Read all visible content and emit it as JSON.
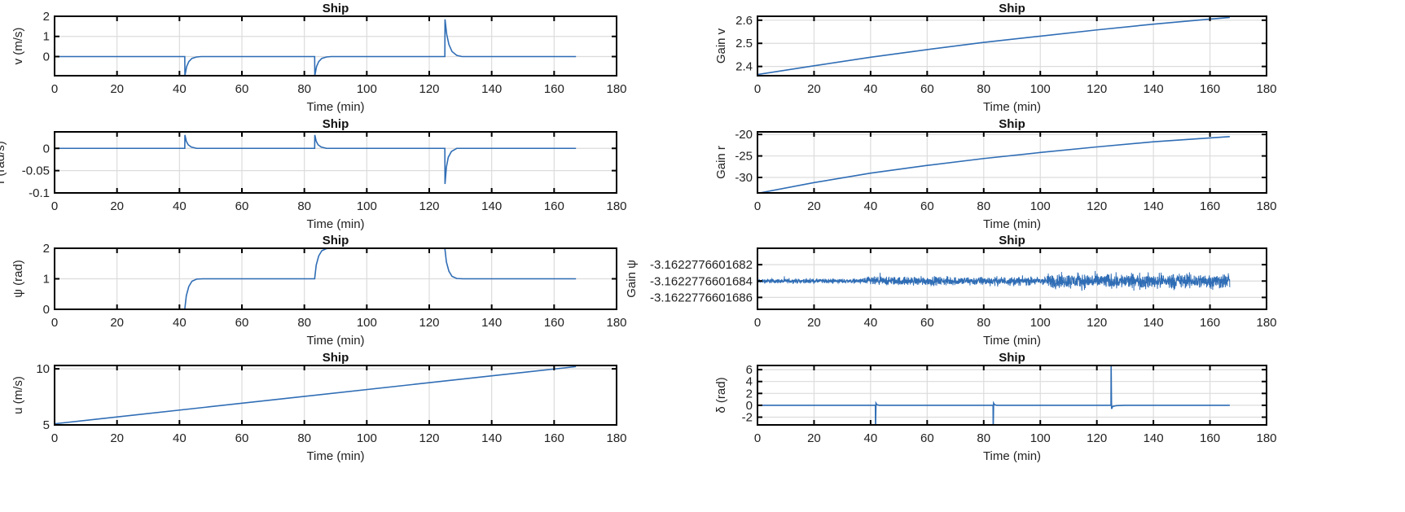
{
  "line_color": "#2f6db5",
  "chart_data": [
    {
      "type": "line",
      "title": "Ship",
      "xlabel": "Time (min)",
      "ylabel": "v (m/s)",
      "xlim": [
        0,
        180
      ],
      "ylim": [
        -0.95,
        2
      ],
      "xticks": [
        0,
        20,
        40,
        60,
        80,
        100,
        120,
        140,
        160,
        180
      ],
      "yticks": [
        0,
        1,
        2
      ],
      "grid": true,
      "x": [
        0,
        41.7,
        41.75,
        42.3,
        43,
        44,
        45.5,
        47,
        83.3,
        83.35,
        83.9,
        84.6,
        85.6,
        87.1,
        88.6,
        125,
        125.05,
        125.6,
        126.3,
        127.3,
        128.8,
        130.5,
        167
      ],
      "y": [
        0,
        0,
        -0.95,
        -0.5,
        -0.25,
        -0.09,
        -0.02,
        0,
        0,
        -0.95,
        -0.5,
        -0.25,
        -0.09,
        -0.02,
        0,
        0,
        1.85,
        1.1,
        0.6,
        0.25,
        0.06,
        0,
        0
      ]
    },
    {
      "type": "line",
      "title": "Ship",
      "xlabel": "Time (min)",
      "ylabel": "r (rad/s)",
      "xlim": [
        0,
        180
      ],
      "ylim": [
        -0.1,
        0.037
      ],
      "xticks": [
        0,
        20,
        40,
        60,
        80,
        100,
        120,
        140,
        160,
        180
      ],
      "yticks": [
        -0.1,
        -0.05,
        0
      ],
      "ytick_labels": [
        "-0.1",
        "-0.05",
        "0"
      ],
      "grid": true,
      "x": [
        0,
        41.7,
        41.75,
        42.2,
        42.8,
        43.8,
        45.5,
        83.3,
        83.35,
        83.8,
        84.4,
        85.4,
        87.1,
        125,
        125.05,
        125.5,
        126.1,
        127.1,
        128.8,
        167
      ],
      "y": [
        0,
        0,
        0.03,
        0.016,
        0.008,
        0.003,
        0,
        0,
        0.03,
        0.016,
        0.008,
        0.003,
        0,
        0,
        -0.08,
        -0.042,
        -0.02,
        -0.007,
        0,
        0
      ]
    },
    {
      "type": "line",
      "title": "Ship",
      "xlabel": "Time (min)",
      "ylabel": "ψ (rad)",
      "xlim": [
        0,
        180
      ],
      "ylim": [
        0,
        2
      ],
      "xticks": [
        0,
        20,
        40,
        60,
        80,
        100,
        120,
        140,
        160,
        180
      ],
      "yticks": [
        0,
        1,
        2
      ],
      "grid": true,
      "x": [
        0,
        41.7,
        42.2,
        43,
        44,
        45.5,
        47.5,
        83.3,
        83.8,
        84.6,
        85.6,
        87.1,
        89.1,
        125,
        125.5,
        126.3,
        127.3,
        128.8,
        130.8,
        167
      ],
      "y": [
        0,
        0,
        0.45,
        0.75,
        0.92,
        0.99,
        1,
        1,
        1.45,
        1.75,
        1.92,
        1.99,
        2,
        2,
        1.55,
        1.25,
        1.08,
        1.01,
        1,
        1
      ]
    },
    {
      "type": "line",
      "title": "Ship",
      "xlabel": "Time (min)",
      "ylabel": "u (m/s)",
      "xlim": [
        0,
        180
      ],
      "ylim": [
        5,
        10.3
      ],
      "xticks": [
        0,
        20,
        40,
        60,
        80,
        100,
        120,
        140,
        160,
        180
      ],
      "yticks": [
        5,
        10
      ],
      "grid": true,
      "x": [
        0,
        167
      ],
      "y": [
        5.1,
        10.2
      ]
    },
    {
      "type": "line",
      "title": "Ship",
      "xlabel": "Time (min)",
      "ylabel": "Gain v",
      "xlim": [
        0,
        180
      ],
      "ylim": [
        2.36,
        2.617
      ],
      "xticks": [
        0,
        20,
        40,
        60,
        80,
        100,
        120,
        140,
        160,
        180
      ],
      "yticks": [
        2.4,
        2.5,
        2.6
      ],
      "grid": true,
      "x": [
        0,
        20,
        40,
        60,
        80,
        100,
        120,
        140,
        160,
        167
      ],
      "y": [
        2.365,
        2.403,
        2.44,
        2.473,
        2.504,
        2.531,
        2.558,
        2.583,
        2.605,
        2.612
      ]
    },
    {
      "type": "line",
      "title": "Ship",
      "xlabel": "Time (min)",
      "ylabel": "Gain r",
      "xlim": [
        0,
        180
      ],
      "ylim": [
        -33.6,
        -19.4
      ],
      "xticks": [
        0,
        20,
        40,
        60,
        80,
        100,
        120,
        140,
        160,
        180
      ],
      "yticks": [
        -30,
        -25,
        -20
      ],
      "grid": true,
      "x": [
        0,
        20,
        40,
        60,
        80,
        100,
        120,
        140,
        160,
        167
      ],
      "y": [
        -33.7,
        -31.2,
        -29.0,
        -27.2,
        -25.6,
        -24.2,
        -22.9,
        -21.7,
        -20.8,
        -20.5
      ]
    },
    {
      "type": "line",
      "title": "Ship",
      "xlabel": "Time (min)",
      "ylabel": "Gain ψ",
      "xlim": [
        0,
        180
      ],
      "ylim": [
        -3.162277660168745,
        -3.162277660168
      ],
      "xticks": [
        0,
        20,
        40,
        60,
        80,
        100,
        120,
        140,
        160,
        180
      ],
      "yticks": [
        -3.1622776601686,
        -3.1622776601684,
        -3.1622776601682
      ],
      "ytick_labels": [
        "-3.1622776601686",
        "-3.1622776601684",
        "-3.1622776601682"
      ],
      "grid": true,
      "noise_center": -3.1622776601684,
      "noise_band": {
        "x": [
          0,
          37,
          38,
          102,
          103,
          167
        ],
        "half_amplitude": [
          4e-14,
          4e-14,
          7.5e-14,
          7.5e-14,
          1.3e-13,
          1.3e-13
        ]
      }
    },
    {
      "type": "line",
      "title": "Ship",
      "xlabel": "Time (min)",
      "ylabel": "δ (rad)",
      "xlim": [
        0,
        180
      ],
      "ylim": [
        -3.3,
        6.7
      ],
      "xticks": [
        0,
        20,
        40,
        60,
        80,
        100,
        120,
        140,
        160,
        180
      ],
      "yticks": [
        -2,
        0,
        2,
        4,
        6
      ],
      "grid": true,
      "x": [
        0,
        41.7,
        41.75,
        41.9,
        42.2,
        43,
        83.3,
        83.35,
        83.5,
        83.8,
        84.6,
        125,
        125.05,
        125.2,
        125.6,
        127,
        130,
        167
      ],
      "y": [
        0,
        0,
        -4,
        0.35,
        0.1,
        0,
        0,
        -4,
        0.35,
        0.1,
        0,
        0,
        7,
        -0.6,
        -0.2,
        -0.05,
        0,
        0
      ]
    }
  ]
}
